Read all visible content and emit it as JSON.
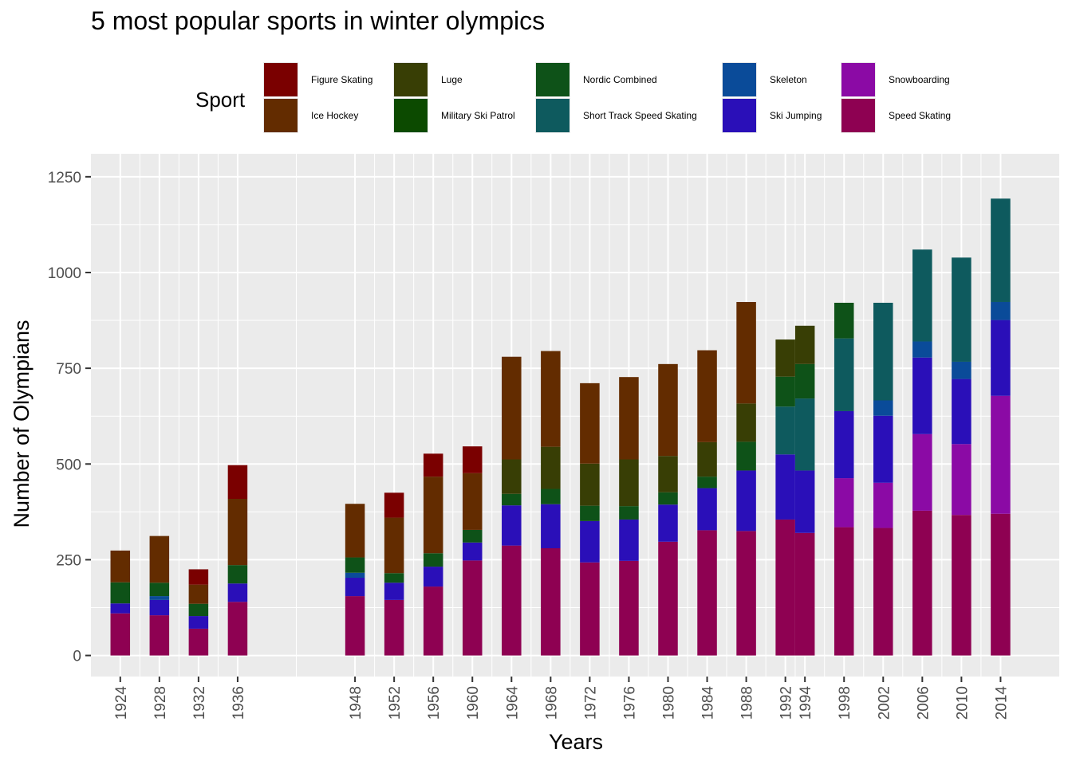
{
  "chart_data": {
    "type": "bar",
    "stacked": true,
    "title": "5 most popular sports in winter olympics",
    "xlabel": "Years",
    "ylabel": "Number of Olympians",
    "ylim": [
      -55,
      1310
    ],
    "y_ticks": [
      0,
      250,
      500,
      750,
      1000,
      1250
    ],
    "x_axis_range": [
      1921,
      2020
    ],
    "grid": true,
    "legend": {
      "title": "Sport",
      "position": "top"
    },
    "categories": [
      "1924",
      "1928",
      "1932",
      "1936",
      "1948",
      "1952",
      "1956",
      "1960",
      "1964",
      "1968",
      "1972",
      "1976",
      "1980",
      "1984",
      "1988",
      "1992",
      "1994",
      "1998",
      "2002",
      "2006",
      "2010",
      "2014"
    ],
    "series": [
      {
        "name": "Speed Skating",
        "color": "#8E0152",
        "values": [
          110,
          105,
          70,
          140,
          155,
          145,
          180,
          248,
          287,
          280,
          243,
          247,
          297,
          327,
          325,
          355,
          320,
          335,
          333,
          378,
          367,
          370
        ]
      },
      {
        "name": "Snowboarding",
        "color": "#8B0AA5",
        "values": [
          0,
          0,
          0,
          0,
          0,
          0,
          0,
          0,
          0,
          0,
          0,
          0,
          0,
          0,
          0,
          0,
          0,
          128,
          118,
          200,
          185,
          308
        ]
      },
      {
        "name": "Ski Jumping",
        "color": "#2A0FB8",
        "values": [
          26,
          40,
          33,
          48,
          48,
          45,
          52,
          47,
          105,
          115,
          108,
          108,
          97,
          110,
          158,
          170,
          163,
          175,
          175,
          200,
          170,
          198
        ]
      },
      {
        "name": "Skeleton",
        "color": "#0A4B99",
        "values": [
          0,
          10,
          0,
          0,
          13,
          0,
          0,
          0,
          0,
          0,
          0,
          0,
          0,
          0,
          0,
          0,
          0,
          0,
          40,
          42,
          45,
          47
        ]
      },
      {
        "name": "Short Track Speed Skating",
        "color": "#0E5A5E",
        "values": [
          0,
          0,
          0,
          0,
          0,
          0,
          0,
          0,
          0,
          0,
          0,
          0,
          0,
          0,
          0,
          125,
          188,
          190,
          255,
          240,
          272,
          270
        ]
      },
      {
        "name": "Nordic Combined",
        "color": "#0E5218",
        "values": [
          55,
          35,
          32,
          48,
          40,
          25,
          35,
          33,
          30,
          40,
          40,
          35,
          32,
          30,
          75,
          78,
          90,
          93,
          0,
          0,
          0,
          0
        ]
      },
      {
        "name": "Military Ski Patrol",
        "color": "#0C4A00",
        "values": [
          0,
          0,
          0,
          0,
          0,
          0,
          0,
          0,
          0,
          0,
          0,
          0,
          0,
          0,
          0,
          0,
          0,
          0,
          0,
          0,
          0,
          0
        ]
      },
      {
        "name": "Luge",
        "color": "#383E05",
        "values": [
          0,
          0,
          0,
          0,
          0,
          0,
          0,
          0,
          90,
          110,
          110,
          122,
          95,
          90,
          100,
          97,
          100,
          0,
          0,
          0,
          0,
          0
        ]
      },
      {
        "name": "Ice Hockey",
        "color": "#632C00",
        "values": [
          83,
          122,
          50,
          173,
          140,
          145,
          200,
          148,
          268,
          250,
          210,
          215,
          240,
          240,
          265,
          0,
          0,
          0,
          0,
          0,
          0,
          0
        ]
      },
      {
        "name": "Figure Skating",
        "color": "#7A0000",
        "values": [
          0,
          0,
          40,
          88,
          0,
          65,
          60,
          70,
          0,
          0,
          0,
          0,
          0,
          0,
          0,
          0,
          0,
          0,
          0,
          0,
          0,
          0
        ]
      }
    ]
  },
  "legend_items": [
    {
      "name": "Figure Skating",
      "color": "#7A0000"
    },
    {
      "name": "Ice Hockey",
      "color": "#632C00"
    },
    {
      "name": "Luge",
      "color": "#383E05"
    },
    {
      "name": "Military Ski Patrol",
      "color": "#0C4A00"
    },
    {
      "name": "Nordic Combined",
      "color": "#0E5218"
    },
    {
      "name": "Short Track Speed Skating",
      "color": "#0E5A5E"
    },
    {
      "name": "Skeleton",
      "color": "#0A4B99"
    },
    {
      "name": "Ski Jumping",
      "color": "#2A0FB8"
    },
    {
      "name": "Snowboarding",
      "color": "#8B0AA5"
    },
    {
      "name": "Speed Skating",
      "color": "#8E0152"
    }
  ]
}
